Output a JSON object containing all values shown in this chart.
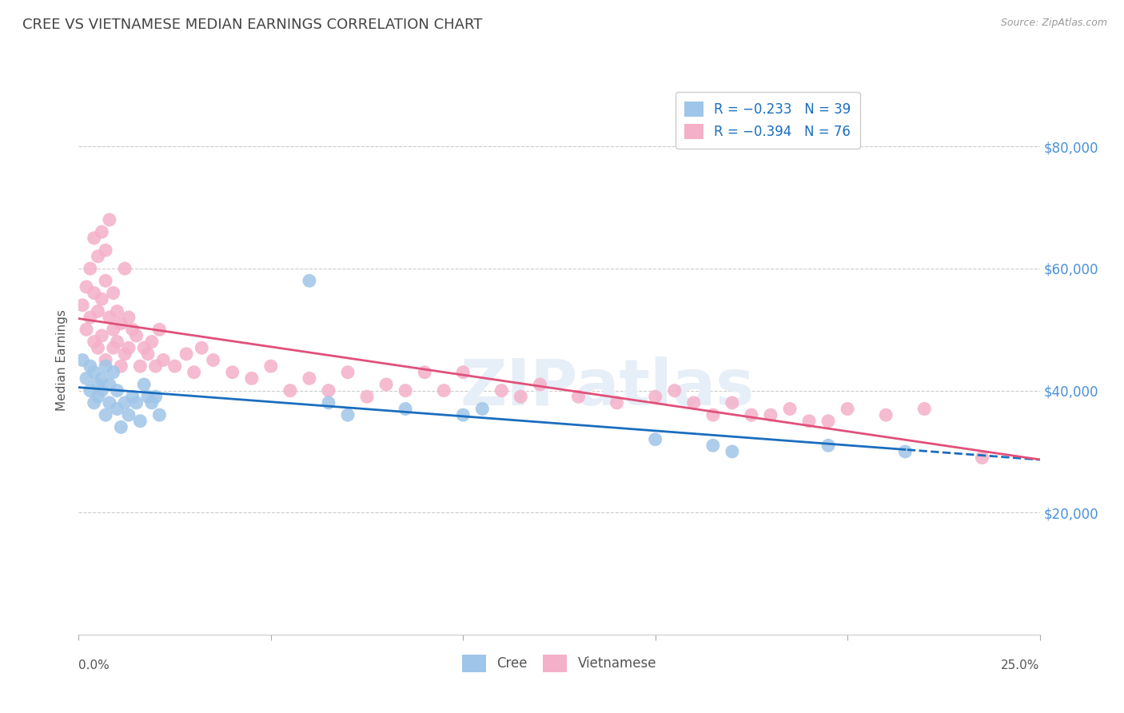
{
  "title": "CREE VS VIETNAMESE MEDIAN EARNINGS CORRELATION CHART",
  "source": "Source: ZipAtlas.com",
  "ylabel": "Median Earnings",
  "xlim": [
    0.0,
    0.25
  ],
  "ylim": [
    0,
    90000
  ],
  "yticks": [
    20000,
    40000,
    60000,
    80000
  ],
  "ytick_labels": [
    "$20,000",
    "$40,000",
    "$60,000",
    "$80,000"
  ],
  "legend_r_cree": "-0.233",
  "legend_n_cree": "39",
  "legend_r_viet": "-0.394",
  "legend_n_viet": "76",
  "cree_color": "#9fc5e8",
  "viet_color": "#f4b0c8",
  "cree_line_color": "#1a6ebd",
  "viet_line_color": "#e0507a",
  "watermark_text": "ZIPatlas",
  "cree_x": [
    0.001,
    0.002,
    0.003,
    0.003,
    0.004,
    0.004,
    0.005,
    0.005,
    0.006,
    0.006,
    0.007,
    0.007,
    0.008,
    0.008,
    0.009,
    0.01,
    0.01,
    0.011,
    0.012,
    0.013,
    0.014,
    0.015,
    0.016,
    0.017,
    0.018,
    0.019,
    0.02,
    0.021,
    0.06,
    0.065,
    0.07,
    0.085,
    0.1,
    0.105,
    0.15,
    0.165,
    0.17,
    0.195,
    0.215
  ],
  "cree_y": [
    45000,
    42000,
    40000,
    44000,
    38000,
    43000,
    41000,
    39000,
    42000,
    40000,
    36000,
    44000,
    41000,
    38000,
    43000,
    40000,
    37000,
    34000,
    38000,
    36000,
    39000,
    38000,
    35000,
    41000,
    39000,
    38000,
    39000,
    36000,
    58000,
    38000,
    36000,
    37000,
    36000,
    37000,
    32000,
    31000,
    30000,
    31000,
    30000
  ],
  "viet_x": [
    0.001,
    0.002,
    0.002,
    0.003,
    0.003,
    0.004,
    0.004,
    0.004,
    0.005,
    0.005,
    0.005,
    0.006,
    0.006,
    0.006,
    0.007,
    0.007,
    0.007,
    0.008,
    0.008,
    0.009,
    0.009,
    0.009,
    0.01,
    0.01,
    0.011,
    0.011,
    0.012,
    0.012,
    0.013,
    0.013,
    0.014,
    0.015,
    0.016,
    0.017,
    0.018,
    0.019,
    0.02,
    0.021,
    0.022,
    0.025,
    0.028,
    0.03,
    0.032,
    0.035,
    0.04,
    0.045,
    0.05,
    0.055,
    0.06,
    0.065,
    0.07,
    0.075,
    0.08,
    0.085,
    0.09,
    0.095,
    0.1,
    0.11,
    0.115,
    0.12,
    0.13,
    0.14,
    0.15,
    0.155,
    0.16,
    0.165,
    0.17,
    0.175,
    0.18,
    0.185,
    0.19,
    0.195,
    0.2,
    0.21,
    0.22,
    0.235
  ],
  "viet_y": [
    54000,
    50000,
    57000,
    52000,
    60000,
    56000,
    65000,
    48000,
    62000,
    53000,
    47000,
    66000,
    55000,
    49000,
    63000,
    58000,
    45000,
    68000,
    52000,
    50000,
    56000,
    47000,
    53000,
    48000,
    51000,
    44000,
    60000,
    46000,
    52000,
    47000,
    50000,
    49000,
    44000,
    47000,
    46000,
    48000,
    44000,
    50000,
    45000,
    44000,
    46000,
    43000,
    47000,
    45000,
    43000,
    42000,
    44000,
    40000,
    42000,
    40000,
    43000,
    39000,
    41000,
    40000,
    43000,
    40000,
    43000,
    40000,
    39000,
    41000,
    39000,
    38000,
    39000,
    40000,
    38000,
    36000,
    38000,
    36000,
    36000,
    37000,
    35000,
    35000,
    37000,
    36000,
    37000,
    29000
  ]
}
